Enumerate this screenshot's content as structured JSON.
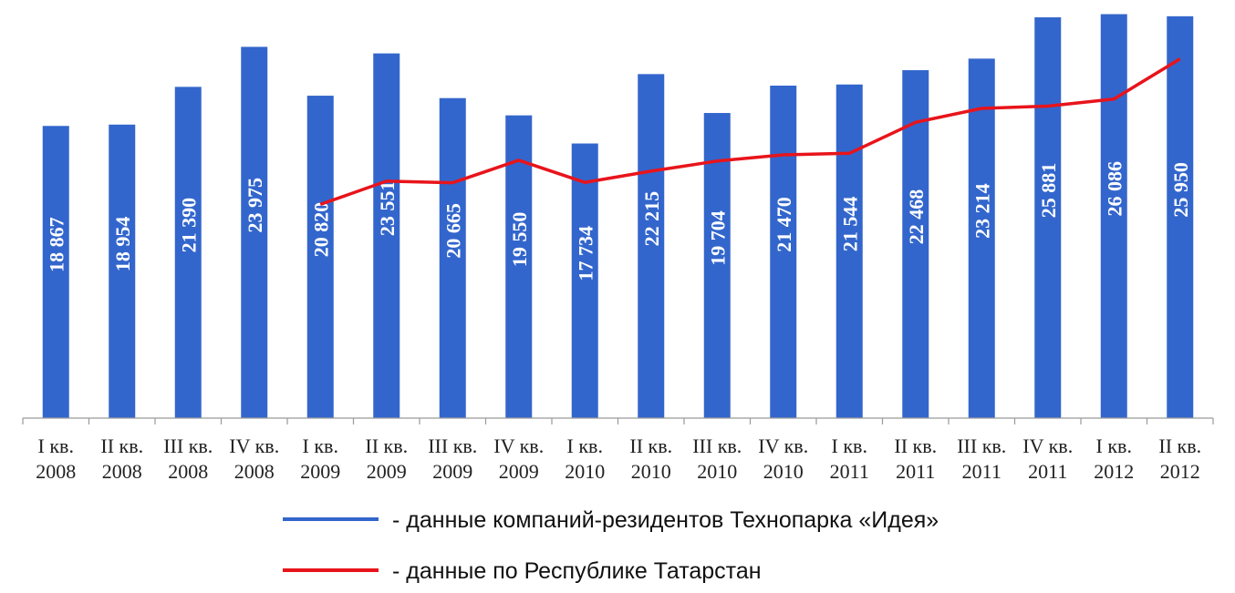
{
  "chart_data": {
    "type": "bar",
    "categories": [
      [
        "I кв.",
        "2008"
      ],
      [
        "II кв.",
        "2008"
      ],
      [
        "III кв.",
        "2008"
      ],
      [
        "IV кв.",
        "2008"
      ],
      [
        "I кв.",
        "2009"
      ],
      [
        "II кв.",
        "2009"
      ],
      [
        "III кв.",
        "2009"
      ],
      [
        "IV кв.",
        "2009"
      ],
      [
        "I кв.",
        "2010"
      ],
      [
        "II кв.",
        "2010"
      ],
      [
        "III кв.",
        "2010"
      ],
      [
        "IV кв.",
        "2010"
      ],
      [
        "I кв.",
        "2011"
      ],
      [
        "II кв.",
        "2011"
      ],
      [
        "III кв.",
        "2011"
      ],
      [
        "IV кв.",
        "2011"
      ],
      [
        "I кв.",
        "2012"
      ],
      [
        "II кв.",
        "2012"
      ]
    ],
    "series": [
      {
        "name": "- данные компаний-резидентов Технопарка «Идея»",
        "type": "bar",
        "color": "#3366cc",
        "values": [
          18867,
          18954,
          21390,
          23975,
          20820,
          23551,
          20665,
          19550,
          17734,
          22215,
          19704,
          21470,
          21544,
          22468,
          23214,
          25881,
          26086,
          25950
        ],
        "labels": [
          "18 867",
          "18 954",
          "21 390",
          "23 975",
          "20 820",
          "23 551",
          "20 665",
          "19 550",
          "17 734",
          "22 215",
          "19 704",
          "21 470",
          "21 544",
          "22 468",
          "23 214",
          "25 881",
          "26 086",
          "25 950"
        ]
      },
      {
        "name": "- данные по Республике Татарстан",
        "type": "line",
        "color": "#e8141b",
        "values": [
          null,
          null,
          null,
          null,
          13800,
          15300,
          15200,
          16650,
          15220,
          15950,
          16600,
          17000,
          17100,
          19100,
          20000,
          20150,
          20600,
          23200
        ]
      }
    ],
    "ylim": [
      0,
      27000
    ],
    "xlabel": "",
    "ylabel": "",
    "title": "",
    "grid": false,
    "legend_position": "bottom"
  }
}
